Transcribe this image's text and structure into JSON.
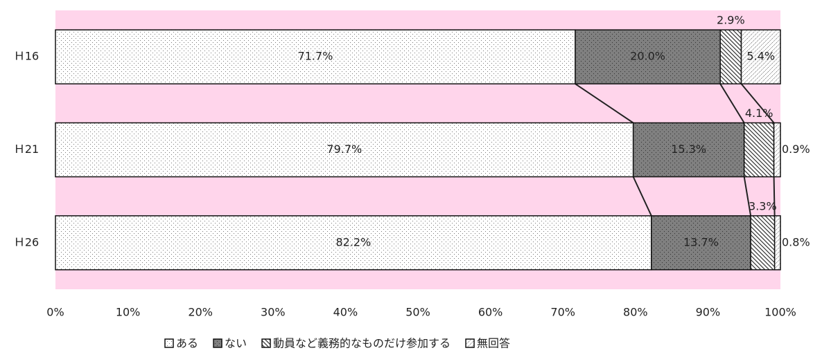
{
  "chart_data": {
    "type": "stacked_bar_horizontal",
    "categories": [
      "Ｈ16",
      "Ｈ21",
      "Ｈ26"
    ],
    "series": [
      {
        "name": "ある",
        "color": "#ffffff",
        "values": [
          71.7,
          79.7,
          82.2
        ],
        "value_labels": [
          "71.7%",
          "79.7%",
          "82.2%"
        ]
      },
      {
        "name": "ない",
        "color": "#808080",
        "values": [
          20.0,
          15.3,
          13.7
        ],
        "value_labels": [
          "20.0%",
          "15.3%",
          "13.7%"
        ]
      },
      {
        "name": "動員など義務的なものだけ参加する",
        "color": "#ffffff",
        "values": [
          2.9,
          4.1,
          3.3
        ],
        "value_labels": [
          "2.9%",
          "4.1%",
          "3.3%"
        ]
      },
      {
        "name": "無回答",
        "color": "#ffffff",
        "values": [
          5.4,
          0.9,
          0.8
        ],
        "value_labels": [
          "5.4%",
          "0.9%",
          "0.8%"
        ]
      }
    ],
    "xlim": [
      0,
      100
    ],
    "xticks": [
      {
        "value": 0,
        "label": "0%"
      },
      {
        "value": 10,
        "label": "10%"
      },
      {
        "value": 20,
        "label": "20%"
      },
      {
        "value": 30,
        "label": "30%"
      },
      {
        "value": 40,
        "label": "40%"
      },
      {
        "value": 50,
        "label": "50%"
      },
      {
        "value": 60,
        "label": "60%"
      },
      {
        "value": 70,
        "label": "70%"
      },
      {
        "value": 80,
        "label": "80%"
      },
      {
        "value": 90,
        "label": "90%"
      },
      {
        "value": 100,
        "label": "100%"
      }
    ],
    "background": "#ffd5eb"
  }
}
